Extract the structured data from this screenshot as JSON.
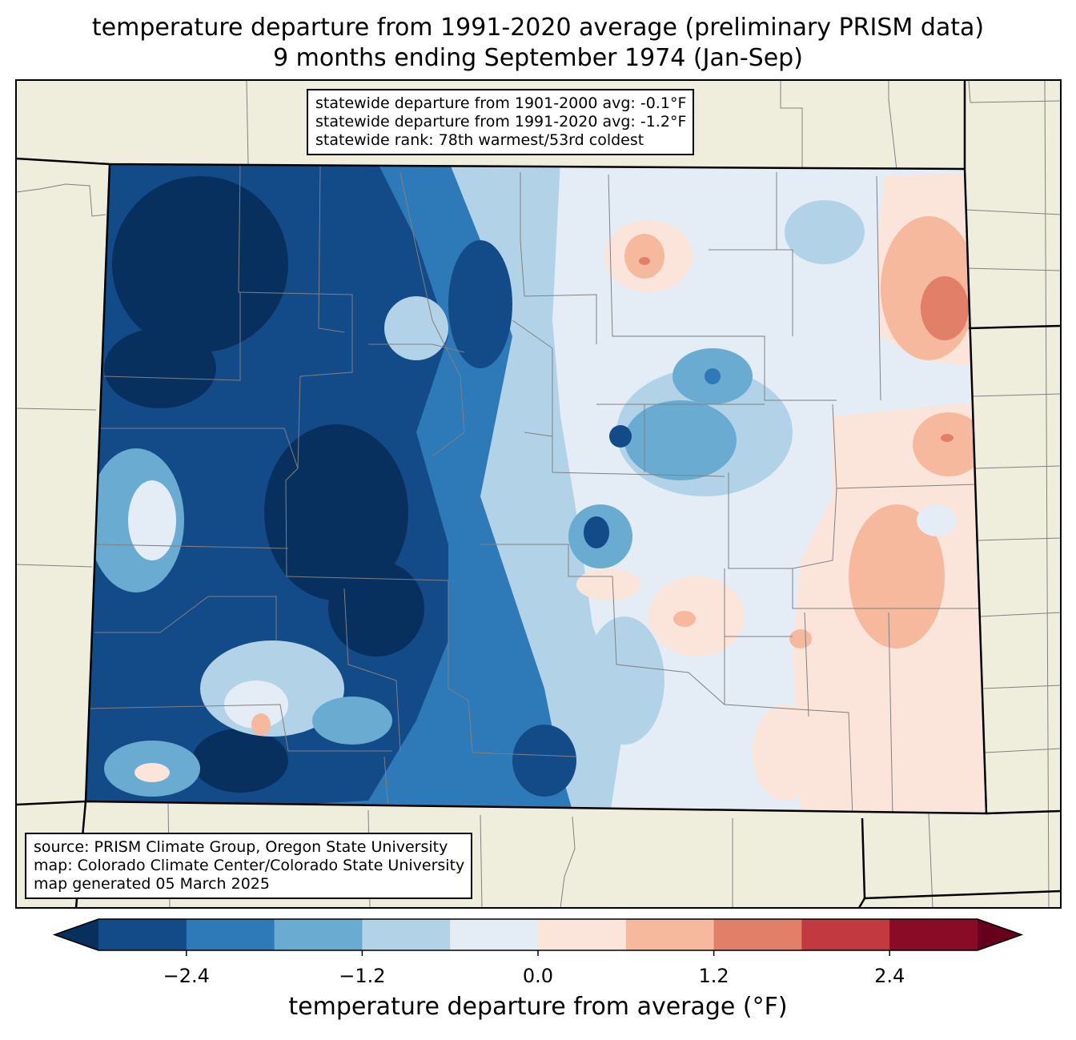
{
  "title": {
    "line1": "temperature departure from 1991-2020 average (preliminary PRISM data)",
    "line2": "9 months ending September 1974 (Jan-Sep)"
  },
  "stats_box": {
    "line1": "statewide departure from 1901-2000 avg: -0.1°F",
    "line2": "statewide departure from 1991-2020 avg: -1.2°F",
    "line3": "statewide rank: 78th warmest/53rd coldest"
  },
  "source_box": {
    "line1": "source: PRISM Climate Group, Oregon State University",
    "line2": "map: Colorado Climate Center/Colorado State University",
    "line3": "map generated 05 March 2025"
  },
  "colorbar": {
    "label": "temperature departure from average (°F)",
    "ticks": [
      "−2.4",
      "−1.2",
      "0.0",
      "1.2",
      "2.4"
    ],
    "tick_values": [
      -2.4,
      -1.2,
      0.0,
      1.2,
      2.4
    ],
    "bins": [
      {
        "min": -3.0,
        "max": -2.4,
        "color": "#134a88"
      },
      {
        "min": -2.4,
        "max": -1.8,
        "color": "#2e79b7"
      },
      {
        "min": -1.8,
        "max": -1.2,
        "color": "#6aabd2"
      },
      {
        "min": -1.2,
        "max": -0.6,
        "color": "#b2d3e7"
      },
      {
        "min": -0.6,
        "max": 0.0,
        "color": "#e4edf5"
      },
      {
        "min": 0.0,
        "max": 0.6,
        "color": "#fbe5da"
      },
      {
        "min": 0.6,
        "max": 1.2,
        "color": "#f6b99e"
      },
      {
        "min": 1.2,
        "max": 1.8,
        "color": "#e17f68"
      },
      {
        "min": 1.8,
        "max": 2.4,
        "color": "#c23a3f"
      },
      {
        "min": 2.4,
        "max": 3.0,
        "color": "#8a0b25"
      }
    ],
    "under_color": "#08305f",
    "over_color": "#67001f"
  },
  "colors": {
    "land": "#efeedc",
    "state_border": "#000000",
    "county_border": "#808080"
  }
}
